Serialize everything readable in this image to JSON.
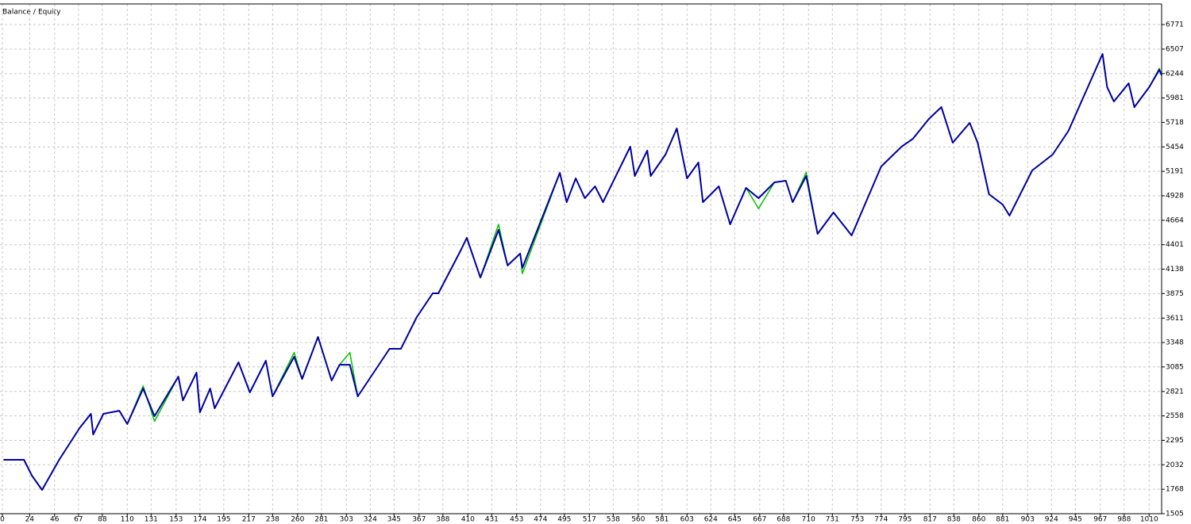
{
  "chart_data": {
    "type": "line",
    "legend_separator": "/",
    "x": [
      1,
      19,
      26,
      35,
      50,
      68,
      78,
      80,
      89,
      103,
      110,
      124,
      134,
      155,
      159,
      171,
      174,
      183,
      187,
      208,
      218,
      232,
      238,
      257,
      264,
      278,
      290,
      297,
      306,
      313,
      327,
      341,
      351,
      365,
      379,
      384,
      404,
      409,
      421,
      437,
      445,
      456,
      458,
      491,
      497,
      505,
      513,
      522,
      529,
      553,
      557,
      568,
      571,
      584,
      594,
      603,
      613,
      617,
      631,
      641,
      655,
      666,
      680,
      690,
      696,
      708,
      718,
      732,
      748,
      774,
      792,
      802,
      816,
      827,
      837,
      852,
      859,
      869,
      881,
      887,
      907,
      925,
      939,
      969,
      973,
      979,
      992,
      997,
      1010,
      1019,
      1021
    ],
    "series": [
      {
        "name": "Balance",
        "color": "#0000a0",
        "values": [
          2085,
          2085,
          1915,
          1761,
          2085,
          2427,
          2580,
          2358,
          2580,
          2614,
          2470,
          2853,
          2555,
          2981,
          2725,
          3024,
          2597,
          2853,
          2640,
          3135,
          2811,
          3152,
          2768,
          3195,
          2956,
          3408,
          2939,
          3109,
          3109,
          2768,
          3024,
          3280,
          3280,
          3622,
          3878,
          3878,
          4347,
          4475,
          4048,
          4561,
          4177,
          4305,
          4151,
          5175,
          4859,
          5115,
          4902,
          5030,
          4859,
          5457,
          5141,
          5414,
          5141,
          5371,
          5653,
          5115,
          5286,
          4859,
          5030,
          4620,
          5013,
          4902,
          5073,
          5090,
          4859,
          5141,
          4518,
          4748,
          4501,
          5243,
          5457,
          5542,
          5755,
          5883,
          5499,
          5713,
          5499,
          4945,
          4834,
          4714,
          5201,
          5371,
          5627,
          6455,
          6097,
          5943,
          6139,
          5883,
          6097,
          6285,
          6225
        ]
      },
      {
        "name": "Equity",
        "color": "#00c000",
        "values": [
          2085,
          2085,
          1915,
          1761,
          2085,
          2427,
          2580,
          2358,
          2580,
          2614,
          2470,
          2880,
          2500,
          2981,
          2725,
          3024,
          2597,
          2853,
          2640,
          3135,
          2811,
          3152,
          2768,
          3240,
          2956,
          3408,
          2939,
          3109,
          3240,
          2768,
          3024,
          3280,
          3280,
          3622,
          3878,
          3878,
          4347,
          4475,
          4048,
          4620,
          4177,
          4305,
          4090,
          5175,
          4859,
          5115,
          4902,
          5030,
          4859,
          5457,
          5141,
          5414,
          5141,
          5371,
          5653,
          5115,
          5286,
          4859,
          5030,
          4620,
          5013,
          4790,
          5073,
          5090,
          4859,
          5180,
          4518,
          4748,
          4501,
          5243,
          5457,
          5542,
          5755,
          5883,
          5499,
          5713,
          5499,
          4945,
          4834,
          4714,
          5201,
          5371,
          5627,
          6455,
          6097,
          5943,
          6139,
          5883,
          6097,
          6300,
          6225
        ]
      }
    ],
    "xlim": [
      0,
      1021
    ],
    "ylim": [
      1505,
      6993
    ],
    "xticks": [
      0,
      24,
      46,
      67,
      88,
      110,
      131,
      153,
      174,
      195,
      217,
      238,
      260,
      281,
      303,
      324,
      345,
      367,
      388,
      410,
      431,
      453,
      474,
      495,
      517,
      538,
      560,
      581,
      603,
      624,
      645,
      667,
      688,
      710,
      731,
      753,
      774,
      795,
      817,
      838,
      860,
      881,
      903,
      924,
      945,
      967,
      988,
      1010
    ],
    "yticks": [
      1505,
      1768,
      2032,
      2295,
      2558,
      2821,
      3085,
      3348,
      3611,
      3875,
      4138,
      4401,
      4664,
      4928,
      5191,
      5454,
      5718,
      5981,
      6244,
      6507,
      6771
    ],
    "grid": true
  }
}
